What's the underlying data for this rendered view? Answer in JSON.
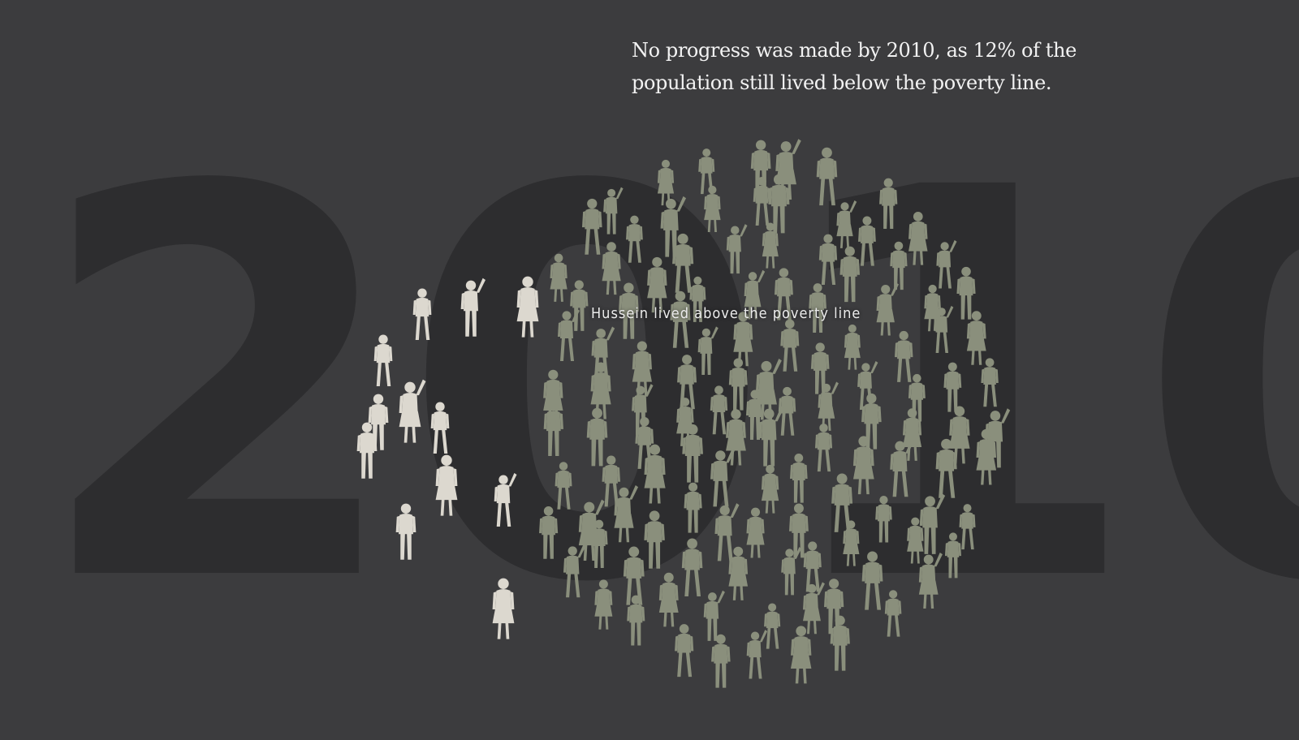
{
  "year": "2010",
  "narrative": {
    "line1": "No progress was made by 2010, as 12% of the",
    "line2": "population still lived below the poverty line."
  },
  "highlight_label": "Hussein lived above the poverty line",
  "colors": {
    "background": "#3c3c3e",
    "year_text": "#2d2d2f",
    "below_poverty": "#8a8f7c",
    "above_poverty": "#dcd8cf"
  },
  "figures": {
    "below_poverty_group": "olive silhouettes",
    "above_poverty_group": "light silhouettes"
  }
}
